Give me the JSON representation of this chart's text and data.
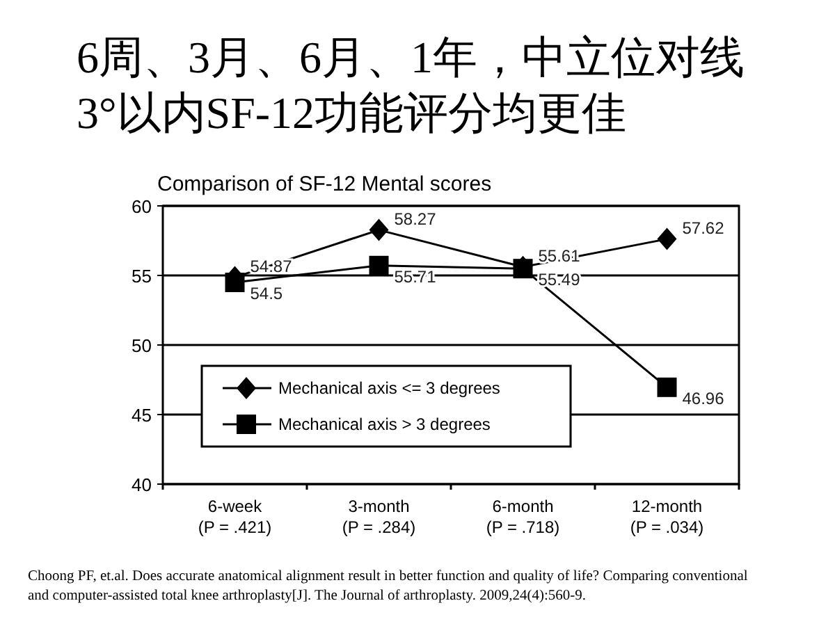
{
  "chart_data": {
    "type": "line",
    "title": "6周、3月、6月、1年，中立位对线\n3°以内SF-12功能评分均更佳",
    "subtitle": "Comparison of SF-12 Mental scores",
    "categories": [
      "6-week\n(P = .421)",
      "3-month\n(P = .284)",
      "6-month\n(P = .718)",
      "12-month\n(P = .034)"
    ],
    "series": [
      {
        "name": "Mechanical axis <= 3 degrees",
        "color": "#000000",
        "marker": "diamond",
        "values": [
          54.87,
          58.27,
          55.61,
          57.62
        ],
        "value_labels": [
          "54.87",
          "58.27",
          "55.61",
          "57.62"
        ]
      },
      {
        "name": "Mechanical axis > 3 degrees",
        "color": "#000000",
        "marker": "square",
        "values": [
          54.5,
          55.71,
          55.49,
          46.96
        ],
        "value_labels": [
          "54.5",
          "55.71",
          "55.49",
          "46.96"
        ]
      }
    ],
    "ylim": [
      40,
      60
    ],
    "yticks": [
      40,
      45,
      50,
      55,
      60
    ],
    "grid": "y",
    "legend": "bottom left",
    "annotations": [
      "Choong PF, et.al. Does accurate anatomical alignment result in better function and quality of life? Comparing conventional and computer-assisted total knee arthroplasty[J]. The Journal of arthroplasty. 2009,24(4):560-9."
    ]
  }
}
